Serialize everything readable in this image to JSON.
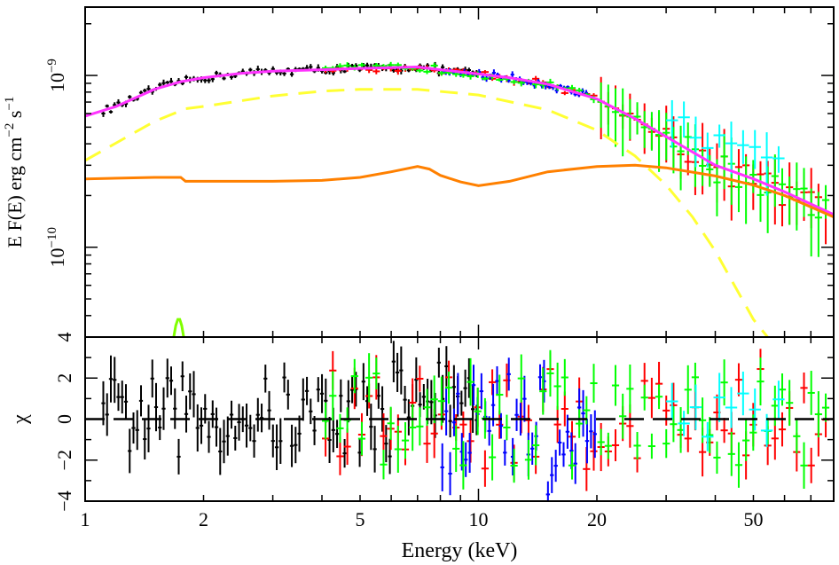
{
  "chart_data": [
    {
      "panel": "spectrum",
      "type": "line",
      "ylabel_parts": [
        "E F(E) erg  cm",
        "−2",
        " s",
        "−1"
      ],
      "xscale": "log",
      "yscale": "log",
      "xlim": [
        1,
        80
      ],
      "ylim": [
        3e-11,
        2.5e-09
      ],
      "ytick_labels": [
        {
          "value": 1e-09,
          "base": "10",
          "exp": "−9"
        },
        {
          "value": 1e-10,
          "base": "10",
          "exp": "−10"
        }
      ],
      "series": [
        {
          "role": "total-model",
          "color": "#ff33ff",
          "x": [
            1,
            1.2,
            1.5,
            1.75,
            1.8,
            2,
            2.5,
            3,
            4,
            5,
            6,
            7,
            8,
            10,
            12,
            15,
            20,
            25,
            30,
            40,
            50,
            60,
            80
          ],
          "y": [
            5.8e-10,
            6.6e-10,
            8.3e-10,
            9.2e-10,
            9.3e-10,
            9.7e-10,
            1.03e-09,
            1.06e-09,
            1.08e-09,
            1.1e-09,
            1.11e-09,
            1.12e-09,
            1.08e-09,
            1.02e-09,
            9.7e-10,
            8.9e-10,
            7.3e-10,
            5.6e-10,
            4.4e-10,
            3e-10,
            2.5e-10,
            2.1e-10,
            1.55e-10
          ]
        },
        {
          "role": "blackbody-component",
          "color": "#ffff33",
          "dash": true,
          "x": [
            1,
            1.5,
            1.8,
            2,
            3,
            4,
            5,
            7,
            10,
            15,
            20,
            25,
            30,
            35,
            40,
            50,
            55
          ],
          "y": [
            3.2e-10,
            5.4e-10,
            6.4e-10,
            6.6e-10,
            7.6e-10,
            8.1e-10,
            8.3e-10,
            8.3e-10,
            7.7e-10,
            6.3e-10,
            4.8e-10,
            3.4e-10,
            2.3e-10,
            1.5e-10,
            9.5e-11,
            3.8e-11,
            2.9e-11
          ]
        },
        {
          "role": "powerlaw-component",
          "color": "#ff8000",
          "x": [
            1,
            1.5,
            1.75,
            1.8,
            2,
            3,
            4,
            5,
            6,
            7,
            7.5,
            8,
            9,
            10,
            12,
            15,
            20,
            25,
            30,
            40,
            50,
            60,
            80
          ],
          "y": [
            2.5e-10,
            2.55e-10,
            2.55e-10,
            2.42e-10,
            2.42e-10,
            2.42e-10,
            2.45e-10,
            2.55e-10,
            2.75e-10,
            2.95e-10,
            2.85e-10,
            2.62e-10,
            2.4e-10,
            2.28e-10,
            2.42e-10,
            2.75e-10,
            2.95e-10,
            3e-10,
            2.9e-10,
            2.6e-10,
            2.3e-10,
            2e-10,
            1.5e-10
          ]
        },
        {
          "role": "line-component",
          "color": "#80ff00",
          "x": [
            1.68,
            1.7,
            1.72,
            1.74,
            1.76,
            1.78
          ],
          "y": [
            3e-11,
            3.5e-11,
            3.8e-11,
            3.8e-11,
            3.5e-11,
            3e-11
          ]
        }
      ],
      "data_groups": [
        {
          "color": "#000000",
          "xrange": [
            1.1,
            10
          ],
          "yrange": [
            5.8e-10,
            1.2e-09
          ],
          "count": 100
        },
        {
          "color": "#ff0000",
          "xrange": [
            4,
            78
          ],
          "yrange": [
            4e-11,
            1.1e-09
          ],
          "count": 70
        },
        {
          "color": "#0000ff",
          "xrange": [
            8,
            19
          ],
          "yrange": [
            6.5e-10,
            1.05e-09
          ],
          "count": 40
        },
        {
          "color": "#00ff00",
          "xrange": [
            4,
            78
          ],
          "yrange": [
            1.1e-10,
            1.15e-09
          ],
          "count": 70
        },
        {
          "color": "#00ffff",
          "xrange": [
            30,
            60
          ],
          "yrange": [
            3e-10,
            6e-10
          ],
          "count": 10
        }
      ]
    },
    {
      "panel": "residuals",
      "type": "scatter",
      "ylabel": "χ",
      "xlabel": "Energy (keV)",
      "xscale": "log",
      "xlim": [
        1,
        80
      ],
      "ylim": [
        -4,
        4
      ],
      "ytick_labels": [
        4,
        2,
        0,
        -2,
        -4
      ],
      "xtick_labels": [
        {
          "value": 1,
          "label": "1"
        },
        {
          "value": 2,
          "label": "2"
        },
        {
          "value": 5,
          "label": "5"
        },
        {
          "value": 10,
          "label": "10"
        },
        {
          "value": 20,
          "label": "20"
        },
        {
          "value": 50,
          "label": "50"
        }
      ],
      "zero_line": {
        "value": 0,
        "dash": true
      },
      "data_groups": [
        {
          "color": "#000000",
          "xrange": [
            1.1,
            10
          ],
          "yrange": [
            -2,
            3
          ],
          "count": 100
        },
        {
          "color": "#ff0000",
          "xrange": [
            4,
            78
          ],
          "yrange": [
            -3,
            3.2
          ],
          "count": 70
        },
        {
          "color": "#0000ff",
          "xrange": [
            8,
            20
          ],
          "yrange": [
            -4,
            2.5
          ],
          "count": 40
        },
        {
          "color": "#00ff00",
          "xrange": [
            4,
            78
          ],
          "yrange": [
            -3,
            2.8
          ],
          "count": 70
        },
        {
          "color": "#00ffff",
          "xrange": [
            30,
            60
          ],
          "yrange": [
            -2,
            3.5
          ],
          "count": 10
        }
      ]
    }
  ]
}
